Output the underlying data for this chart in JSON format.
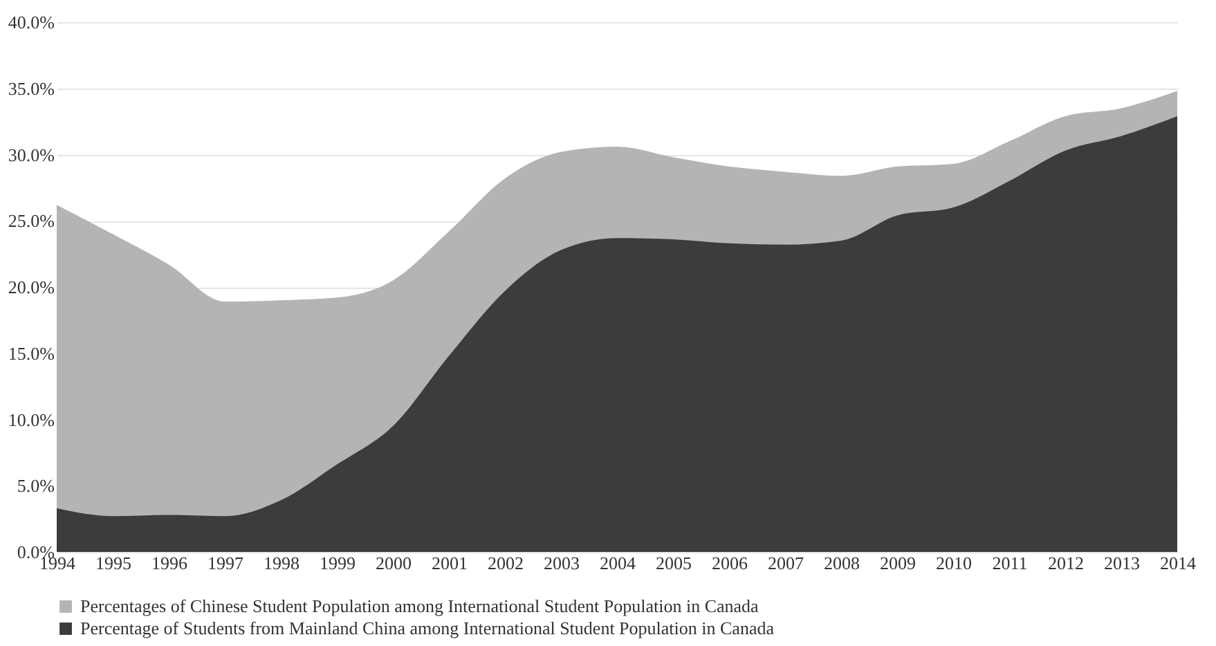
{
  "chart_data": {
    "type": "area",
    "x": [
      1994,
      1995,
      1996,
      1997,
      1998,
      1999,
      2000,
      2001,
      2002,
      2003,
      2004,
      2005,
      2006,
      2007,
      2008,
      2009,
      2010,
      2011,
      2012,
      2013,
      2014
    ],
    "series": [
      {
        "name": "Percentages of Chinese Student Population among International Student Population in Canada",
        "color": "#b4b4b4",
        "values": [
          26.2,
          24.0,
          21.7,
          18.9,
          19.0,
          19.2,
          20.5,
          24.2,
          28.2,
          30.2,
          30.6,
          29.8,
          29.1,
          28.7,
          28.4,
          29.1,
          29.3,
          31.0,
          32.9,
          33.5,
          34.8
        ]
      },
      {
        "name": "Percentage of Students from Mainland China among International Student Population in Canada",
        "color": "#3c3c3c",
        "values": [
          3.3,
          2.7,
          2.8,
          2.7,
          3.9,
          6.6,
          9.5,
          14.8,
          19.7,
          22.8,
          23.7,
          23.6,
          23.3,
          23.2,
          23.5,
          25.4,
          26.0,
          28.0,
          30.3,
          31.4,
          32.9
        ]
      }
    ],
    "xlim": [
      1994,
      2014
    ],
    "xticks": [
      1994,
      1995,
      1996,
      1997,
      1998,
      1999,
      2000,
      2001,
      2002,
      2003,
      2004,
      2005,
      2006,
      2007,
      2008,
      2009,
      2010,
      2011,
      2012,
      2013,
      2014
    ],
    "ylim": [
      0,
      40
    ],
    "yticks": [
      {
        "value": 0,
        "label": "0.0%"
      },
      {
        "value": 5,
        "label": "5.0%"
      },
      {
        "value": 10,
        "label": "10.0%"
      },
      {
        "value": 15,
        "label": "15.0%"
      },
      {
        "value": 20,
        "label": "20.0%"
      },
      {
        "value": 25,
        "label": "25.0%"
      },
      {
        "value": 30,
        "label": "30.0%"
      },
      {
        "value": 35,
        "label": "35.0%"
      },
      {
        "value": 40,
        "label": "40.0%"
      }
    ],
    "grid": "y",
    "legend": "bottom"
  }
}
